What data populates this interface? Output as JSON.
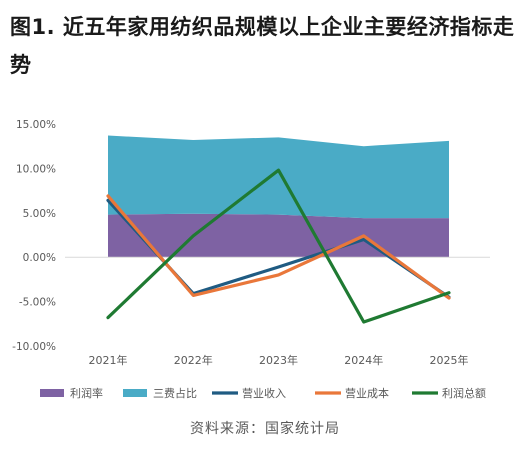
{
  "title": "图1. 近五年家用纺织品规模以上企业主要经济指标走势",
  "source": "资料来源：国家统计局",
  "chart_data": {
    "type": "area+line",
    "categories": [
      "2021年",
      "2022年",
      "2023年",
      "2024年",
      "2025年"
    ],
    "ylim": [
      -10,
      15
    ],
    "yticks": [
      "-10.00%",
      "-5.00%",
      "0.00%",
      "5.00%",
      "10.00%",
      "15.00%"
    ],
    "ytick_values": [
      -10,
      -5,
      0,
      5,
      10,
      15
    ],
    "legend_position": "bottom",
    "stacked_areas": [
      {
        "name": "利润率",
        "color": "#7e62a3",
        "values": [
          4.8,
          4.9,
          4.8,
          4.4,
          4.4
        ]
      },
      {
        "name": "三费占比",
        "color": "#4aabc6",
        "values": [
          8.9,
          8.3,
          8.7,
          8.1,
          8.7
        ]
      }
    ],
    "lines": [
      {
        "name": "营业收入",
        "color": "#1f5b82",
        "values": [
          6.4,
          -4.1,
          -1.1,
          2.0,
          -4.5
        ]
      },
      {
        "name": "营业成本",
        "color": "#e9773a",
        "values": [
          6.9,
          -4.3,
          -2.0,
          2.4,
          -4.6
        ]
      },
      {
        "name": "利润总额",
        "color": "#1f7a32",
        "values": [
          -6.8,
          2.4,
          9.8,
          -7.3,
          -4.0
        ]
      }
    ],
    "grid": false
  }
}
